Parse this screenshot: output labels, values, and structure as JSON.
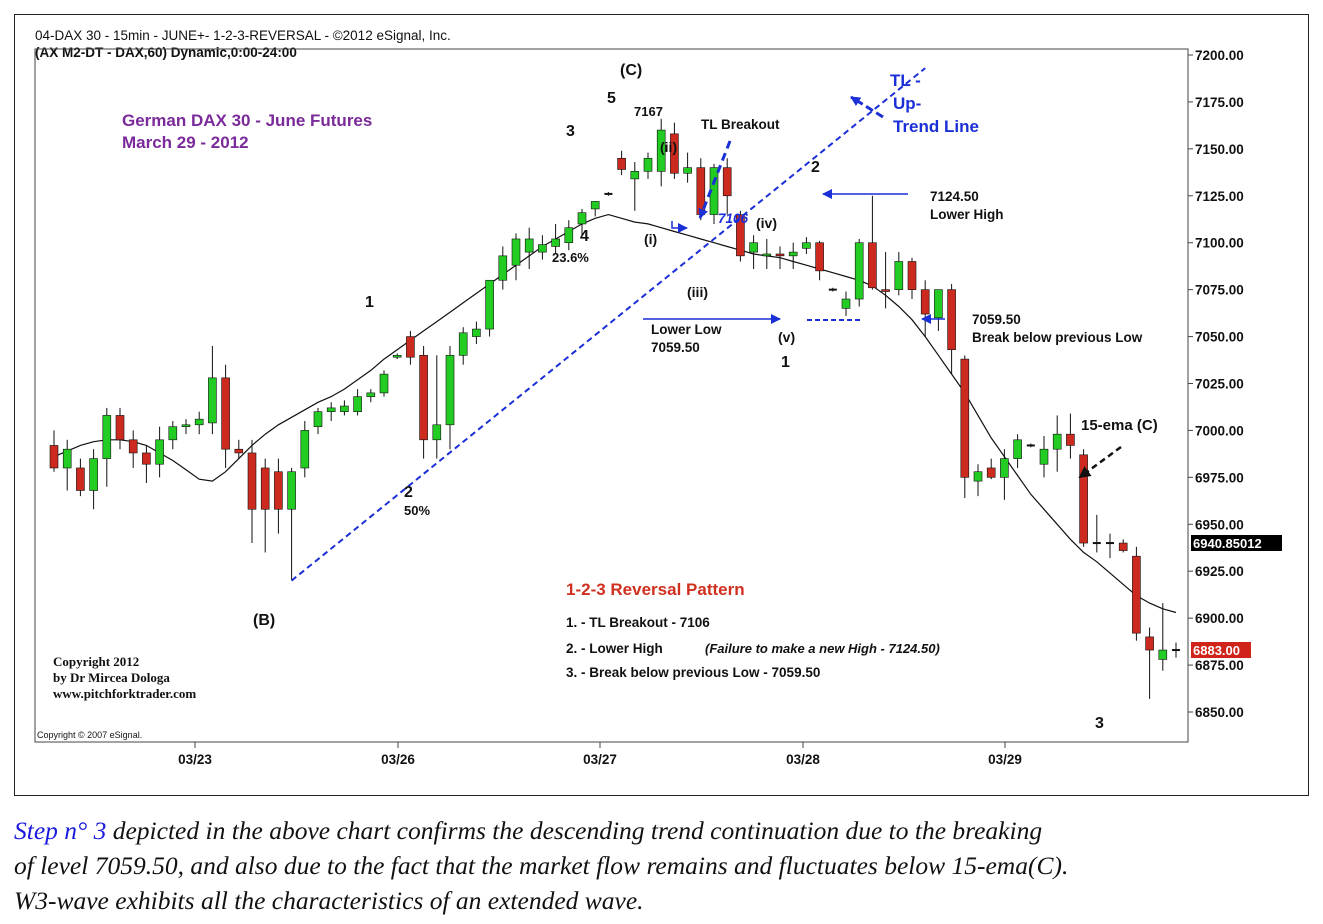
{
  "header": {
    "title": "04-DAX 30 - 15min - JUNE+- 1-2-3-REVERSAL - ©2012 eSignal, Inc.",
    "subtitle": "(AX M2-DT - DAX,60) Dynamic,0:00-24:00"
  },
  "chart_data": {
    "type": "candlestick",
    "instrument": "German DAX 30 - June Futures",
    "date": "March 29 - 2012",
    "ylim": [
      6835,
      7205
    ],
    "y_ticks": [
      "7200.00",
      "7175.00",
      "7150.00",
      "7125.00",
      "7100.00",
      "7075.00",
      "7050.00",
      "7025.00",
      "7000.00",
      "6975.00",
      "6950.00",
      "6925.00",
      "6900.00",
      "6875.00",
      "6850.00"
    ],
    "x_ticks": [
      "03/23",
      "03/26",
      "03/27",
      "03/28",
      "03/29"
    ],
    "last_value_label": "6940.85012",
    "last_price_label": "6883.00",
    "candles": [
      {
        "o": 6992,
        "h": 7000,
        "l": 6978,
        "c": 6980
      },
      {
        "o": 6980,
        "h": 6995,
        "l": 6968,
        "c": 6990
      },
      {
        "o": 6980,
        "h": 6985,
        "l": 6965,
        "c": 6968
      },
      {
        "o": 6968,
        "h": 6990,
        "l": 6958,
        "c": 6985
      },
      {
        "o": 6985,
        "h": 7012,
        "l": 6970,
        "c": 7008
      },
      {
        "o": 7008,
        "h": 7012,
        "l": 6990,
        "c": 6995
      },
      {
        "o": 6995,
        "h": 7000,
        "l": 6980,
        "c": 6988
      },
      {
        "o": 6988,
        "h": 6992,
        "l": 6972,
        "c": 6982
      },
      {
        "o": 6982,
        "h": 7002,
        "l": 6975,
        "c": 6995
      },
      {
        "o": 6995,
        "h": 7005,
        "l": 6990,
        "c": 7002
      },
      {
        "o": 7002,
        "h": 7006,
        "l": 6998,
        "c": 7003
      },
      {
        "o": 7003,
        "h": 7010,
        "l": 6998,
        "c": 7006
      },
      {
        "o": 7004,
        "h": 7045,
        "l": 6998,
        "c": 7028
      },
      {
        "o": 7028,
        "h": 7035,
        "l": 6980,
        "c": 6990
      },
      {
        "o": 6990,
        "h": 6995,
        "l": 6985,
        "c": 6988
      },
      {
        "o": 6988,
        "h": 6995,
        "l": 6940,
        "c": 6958
      },
      {
        "o": 6980,
        "h": 6985,
        "l": 6935,
        "c": 6958
      },
      {
        "o": 6978,
        "h": 6985,
        "l": 6945,
        "c": 6958
      },
      {
        "o": 6958,
        "h": 6980,
        "l": 6920,
        "c": 6978
      },
      {
        "o": 6980,
        "h": 7005,
        "l": 6975,
        "c": 7000
      },
      {
        "o": 7002,
        "h": 7012,
        "l": 6998,
        "c": 7010
      },
      {
        "o": 7010,
        "h": 7015,
        "l": 7005,
        "c": 7012
      },
      {
        "o": 7010,
        "h": 7016,
        "l": 7008,
        "c": 7013
      },
      {
        "o": 7010,
        "h": 7022,
        "l": 7008,
        "c": 7018
      },
      {
        "o": 7018,
        "h": 7022,
        "l": 7015,
        "c": 7020
      },
      {
        "o": 7020,
        "h": 7032,
        "l": 7018,
        "c": 7030
      },
      {
        "o": 7039,
        "h": 7041,
        "l": 7038,
        "c": 7040
      },
      {
        "o": 7050,
        "h": 7053,
        "l": 7035,
        "c": 7039
      },
      {
        "o": 7040,
        "h": 7045,
        "l": 6985,
        "c": 6995
      },
      {
        "o": 6995,
        "h": 7040,
        "l": 6985,
        "c": 7003
      },
      {
        "o": 7003,
        "h": 7045,
        "l": 6990,
        "c": 7040
      },
      {
        "o": 7040,
        "h": 7055,
        "l": 7035,
        "c": 7052
      },
      {
        "o": 7050,
        "h": 7058,
        "l": 7046,
        "c": 7054
      },
      {
        "o": 7054,
        "h": 7080,
        "l": 7050,
        "c": 7080
      },
      {
        "o": 7080,
        "h": 7098,
        "l": 7075,
        "c": 7093
      },
      {
        "o": 7088,
        "h": 7105,
        "l": 7080,
        "c": 7102
      },
      {
        "o": 7095,
        "h": 7108,
        "l": 7086,
        "c": 7102
      },
      {
        "o": 7095,
        "h": 7104,
        "l": 7091,
        "c": 7099
      },
      {
        "o": 7098,
        "h": 7110,
        "l": 7094,
        "c": 7102
      },
      {
        "o": 7100,
        "h": 7112,
        "l": 7096,
        "c": 7108
      },
      {
        "o": 7110,
        "h": 7118,
        "l": 7104,
        "c": 7116
      },
      {
        "o": 7118,
        "h": 7122,
        "l": 7114,
        "c": 7122
      },
      {
        "o": 7126,
        "h": 7127,
        "l": 7125,
        "c": 7126
      },
      {
        "o": 7145,
        "h": 7149,
        "l": 7136,
        "c": 7139
      },
      {
        "o": 7134,
        "h": 7143,
        "l": 7117,
        "c": 7138
      },
      {
        "o": 7138,
        "h": 7148,
        "l": 7134,
        "c": 7145
      },
      {
        "o": 7138,
        "h": 7166,
        "l": 7130,
        "c": 7160
      },
      {
        "o": 7158,
        "h": 7164,
        "l": 7134,
        "c": 7137
      },
      {
        "o": 7137,
        "h": 7148,
        "l": 7132,
        "c": 7140
      },
      {
        "o": 7140,
        "h": 7145,
        "l": 7112,
        "c": 7115
      },
      {
        "o": 7115,
        "h": 7142,
        "l": 7110,
        "c": 7140
      },
      {
        "o": 7140,
        "h": 7145,
        "l": 7115,
        "c": 7125
      },
      {
        "o": 7115,
        "h": 7117,
        "l": 7090,
        "c": 7093
      },
      {
        "o": 7095,
        "h": 7104,
        "l": 7086,
        "c": 7100
      },
      {
        "o": 7093,
        "h": 7102,
        "l": 7086,
        "c": 7094
      },
      {
        "o": 7094,
        "h": 7098,
        "l": 7086,
        "c": 7093
      },
      {
        "o": 7093,
        "h": 7100,
        "l": 7086,
        "c": 7095
      },
      {
        "o": 7097,
        "h": 7103,
        "l": 7094,
        "c": 7100
      },
      {
        "o": 7100,
        "h": 7101,
        "l": 7080,
        "c": 7085
      },
      {
        "o": 7075,
        "h": 7076,
        "l": 7074,
        "c": 7075
      },
      {
        "o": 7065,
        "h": 7074,
        "l": 7061,
        "c": 7070
      },
      {
        "o": 7070,
        "h": 7102,
        "l": 7066,
        "c": 7100
      },
      {
        "o": 7100,
        "h": 7125,
        "l": 7075,
        "c": 7076
      },
      {
        "o": 7075,
        "h": 7095,
        "l": 7065,
        "c": 7074
      },
      {
        "o": 7075,
        "h": 7095,
        "l": 7072,
        "c": 7090
      },
      {
        "o": 7090,
        "h": 7092,
        "l": 7070,
        "c": 7075
      },
      {
        "o": 7075,
        "h": 7080,
        "l": 7050,
        "c": 7062
      },
      {
        "o": 7060,
        "h": 7074,
        "l": 7053,
        "c": 7075
      },
      {
        "o": 7075,
        "h": 7078,
        "l": 7030,
        "c": 7043
      },
      {
        "o": 7038,
        "h": 7040,
        "l": 6964,
        "c": 6975
      },
      {
        "o": 6973,
        "h": 6982,
        "l": 6965,
        "c": 6978
      },
      {
        "o": 6980,
        "h": 6985,
        "l": 6974,
        "c": 6975
      },
      {
        "o": 6975,
        "h": 6990,
        "l": 6963,
        "c": 6985
      },
      {
        "o": 6985,
        "h": 6998,
        "l": 6980,
        "c": 6995
      },
      {
        "o": 6992,
        "h": 6993,
        "l": 6991,
        "c": 6992
      },
      {
        "o": 6982,
        "h": 6997,
        "l": 6975,
        "c": 6990
      },
      {
        "o": 6990,
        "h": 7008,
        "l": 6978,
        "c": 6998
      },
      {
        "o": 6998,
        "h": 7009,
        "l": 6985,
        "c": 6992
      },
      {
        "o": 6987,
        "h": 6990,
        "l": 6938,
        "c": 6940
      },
      {
        "o": 6940,
        "h": 6955,
        "l": 6935,
        "c": 6940
      },
      {
        "o": 6940,
        "h": 6945,
        "l": 6932,
        "c": 6940
      },
      {
        "o": 6940,
        "h": 6942,
        "l": 6935,
        "c": 6936
      },
      {
        "o": 6933,
        "h": 6938,
        "l": 6888,
        "c": 6892
      },
      {
        "o": 6890,
        "h": 6895,
        "l": 6857,
        "c": 6883
      },
      {
        "o": 6878,
        "h": 6908,
        "l": 6872,
        "c": 6883
      },
      {
        "o": 6883,
        "h": 6887,
        "l": 6879,
        "c": 6883
      }
    ],
    "ema_label": "15-ema (C)",
    "ema": [
      6986,
      6989,
      6992,
      6994,
      6995,
      6995,
      6994,
      6992,
      6988,
      6984,
      6979,
      6974,
      6973,
      6978,
      6985,
      6992,
      6998,
      7003,
      7007,
      7011,
      7015,
      7018,
      7022,
      7027,
      7032,
      7038,
      7043,
      7048,
      7053,
      7058,
      7063,
      7068,
      7073,
      7078,
      7083,
      7088,
      7093,
      7098,
      7102,
      7106,
      7110,
      7113,
      7115,
      7113,
      7111,
      7110,
      7108,
      7106,
      7104,
      7102,
      7100,
      7098,
      7096,
      7094,
      7093,
      7092,
      7090,
      7088,
      7086,
      7084,
      7082,
      7080,
      7077,
      7072,
      7066,
      7059,
      7050,
      7040,
      7030,
      7020,
      7008,
      6996,
      6986,
      6976,
      6966,
      6958,
      6950,
      6942,
      6935,
      6930,
      6924,
      6918,
      6912,
      6908,
      6905,
      6903
    ],
    "trendline": {
      "from": {
        "candle": 18,
        "price": 6920
      },
      "to": {
        "candle": 66,
        "price": 7193
      },
      "label": "TL - Up- Trend Line"
    }
  },
  "annotations": {
    "title_line1": "German DAX 30 - June Futures",
    "title_line2": "March 29 - 2012",
    "wave_C": "(C)",
    "wave_1": "1",
    "wave_2": "2",
    "wave_2_pct": "50%",
    "wave_3": "3",
    "wave_4": "4",
    "wave_4_pct": "23.6%",
    "wave_5": "5",
    "high_7167": "7167",
    "wave_B": "(B)",
    "wave_i": "(i)",
    "wave_ii": "(ii)",
    "wave_iii": "(iii)",
    "wave_iv": "(iv)",
    "wave_v": "(v)",
    "wave_1_new": "1",
    "wave_2_new": "2",
    "wave_3_new": "3",
    "tl_breakout": "TL Breakout",
    "tl_value": "7106",
    "tl_label_1": "TL -",
    "tl_label_2": "Up-",
    "tl_label_3": "Trend Line",
    "lower_high_value": "7124.50",
    "lower_high_label": "Lower High",
    "lower_low_label": "Lower Low",
    "lower_low_value": "7059.50",
    "break_value": "7059.50",
    "break_label": "Break below previous Low",
    "ema_label": "15-ema (C)",
    "pattern_title": "1-2-3 Reversal Pattern",
    "pattern_item_1": "1.  -  TL Breakout - 7106",
    "pattern_item_2": "2.  -  Lower High",
    "pattern_item_2_note": "(Failure to make a new High - 7124.50)",
    "pattern_item_3": "3.  -  Break below previous Low - 7059.50",
    "copyright_1": "Copyright 2012",
    "copyright_2": "by Dr Mircea Dologa",
    "copyright_3": "www.pitchforktrader.com",
    "esignal_copyright": "Copyright © 2007 eSignal."
  },
  "caption": {
    "step": "Step n° 3",
    "rest_line1": " depicted in the above chart confirms the descending trend continuation due to the breaking",
    "line2": "of level 7059.50, and also due to the fact that the market flow remains and fluctuates below 15-ema(C).",
    "line3": "W3-wave exhibits all the characteristics of an extended wave."
  },
  "colors": {
    "up": "#22cc22",
    "down": "#cc2a1e",
    "trendline": "#1a2fd6",
    "annotation_blue": "#1a2fd6",
    "purple": "#7a2a9a",
    "red_title": "#d03020"
  }
}
